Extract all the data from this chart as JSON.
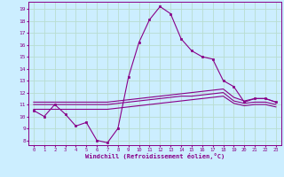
{
  "xlabel": "Windchill (Refroidissement éolien,°C)",
  "background_color": "#cceeff",
  "grid_color": "#b8ddd0",
  "line_color": "#880088",
  "x_ticks": [
    0,
    1,
    2,
    3,
    4,
    5,
    6,
    7,
    8,
    9,
    10,
    11,
    12,
    13,
    14,
    15,
    16,
    17,
    18,
    19,
    20,
    21,
    22,
    23
  ],
  "y_ticks": [
    8,
    9,
    10,
    11,
    12,
    13,
    14,
    15,
    16,
    17,
    18,
    19
  ],
  "ylim": [
    7.6,
    19.6
  ],
  "xlim": [
    -0.5,
    23.5
  ],
  "line1_x": [
    0,
    1,
    2,
    3,
    4,
    5,
    6,
    7,
    8,
    9,
    10,
    11,
    12,
    13,
    14,
    15,
    16,
    17,
    18,
    19,
    20,
    21,
    22,
    23
  ],
  "line1_y": [
    10.5,
    10.0,
    11.0,
    10.2,
    9.2,
    9.5,
    8.0,
    7.8,
    9.0,
    13.3,
    16.2,
    18.1,
    19.2,
    18.6,
    16.5,
    15.5,
    15.0,
    14.8,
    13.0,
    12.5,
    11.2,
    11.5,
    11.5,
    11.2
  ],
  "line2_x": [
    0,
    1,
    2,
    3,
    4,
    5,
    6,
    7,
    8,
    9,
    10,
    11,
    12,
    13,
    14,
    15,
    16,
    17,
    18,
    19,
    20,
    21,
    22,
    23
  ],
  "line2_y": [
    11.2,
    11.2,
    11.2,
    11.2,
    11.2,
    11.2,
    11.2,
    11.2,
    11.3,
    11.4,
    11.5,
    11.6,
    11.7,
    11.8,
    11.9,
    12.0,
    12.1,
    12.2,
    12.3,
    11.6,
    11.3,
    11.5,
    11.5,
    11.2
  ],
  "line3_x": [
    0,
    1,
    2,
    3,
    4,
    5,
    6,
    7,
    8,
    9,
    10,
    11,
    12,
    13,
    14,
    15,
    16,
    17,
    18,
    19,
    20,
    21,
    22,
    23
  ],
  "line3_y": [
    11.0,
    11.0,
    11.0,
    11.0,
    11.0,
    11.0,
    11.0,
    11.0,
    11.1,
    11.2,
    11.3,
    11.4,
    11.5,
    11.6,
    11.7,
    11.7,
    11.8,
    11.9,
    12.0,
    11.3,
    11.1,
    11.2,
    11.2,
    11.0
  ],
  "line4_x": [
    0,
    1,
    2,
    3,
    4,
    5,
    6,
    7,
    8,
    9,
    10,
    11,
    12,
    13,
    14,
    15,
    16,
    17,
    18,
    19,
    20,
    21,
    22,
    23
  ],
  "line4_y": [
    10.6,
    10.6,
    10.6,
    10.6,
    10.6,
    10.6,
    10.6,
    10.6,
    10.7,
    10.8,
    10.9,
    11.0,
    11.1,
    11.2,
    11.3,
    11.4,
    11.5,
    11.6,
    11.7,
    11.1,
    10.9,
    11.0,
    11.0,
    10.8
  ]
}
